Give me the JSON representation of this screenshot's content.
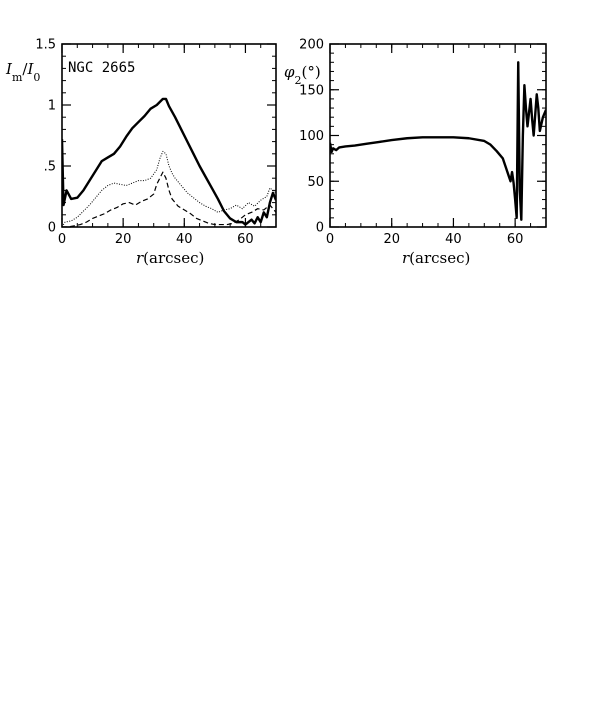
{
  "chart_data": [
    {
      "type": "line",
      "ylabel_main": "I",
      "ylabel_sub_m": "m",
      "ylabel_slash": "/",
      "ylabel_sub_0": "0",
      "xlabel_italic": "r",
      "xlabel_rest": "(arcsec)",
      "annotation": "NGC 2665",
      "xlim": [
        0,
        70
      ],
      "ylim": [
        0,
        1.5
      ],
      "xticks": [
        {
          "v": 0,
          "label": "0"
        },
        {
          "v": 20,
          "label": "20"
        },
        {
          "v": 40,
          "label": "40"
        },
        {
          "v": 60,
          "label": "60"
        }
      ],
      "yticks": [
        {
          "v": 0,
          "label": "0"
        },
        {
          "v": 0.5,
          "label": ".5"
        },
        {
          "v": 1,
          "label": "1"
        },
        {
          "v": 1.5,
          "label": "1.5"
        }
      ],
      "grid": false,
      "series": [
        {
          "style": "solid-thick",
          "x": [
            0,
            0.5,
            1.5,
            3,
            5,
            7,
            9,
            11,
            13,
            15,
            17,
            19,
            21,
            23,
            25,
            27,
            29,
            31,
            33,
            34,
            35,
            37,
            39,
            41,
            43,
            45,
            47,
            49,
            51,
            53,
            55,
            57,
            59,
            60,
            61,
            62,
            63,
            64,
            65,
            66,
            67,
            68,
            69,
            70
          ],
          "y": [
            0.72,
            0.18,
            0.3,
            0.23,
            0.24,
            0.3,
            0.38,
            0.46,
            0.54,
            0.57,
            0.6,
            0.66,
            0.74,
            0.81,
            0.86,
            0.91,
            0.97,
            1.0,
            1.05,
            1.05,
            0.99,
            0.9,
            0.8,
            0.7,
            0.6,
            0.5,
            0.41,
            0.32,
            0.23,
            0.13,
            0.07,
            0.04,
            0.04,
            0.02,
            0.04,
            0.06,
            0.03,
            0.08,
            0.04,
            0.12,
            0.08,
            0.2,
            0.28,
            0.22
          ]
        },
        {
          "style": "dotted",
          "x": [
            0,
            1,
            3,
            5,
            7,
            9,
            11,
            13,
            15,
            17,
            19,
            21,
            23,
            25,
            27,
            29,
            31,
            32,
            33,
            34,
            35,
            36,
            37,
            39,
            41,
            43,
            45,
            47,
            49,
            51,
            53,
            55,
            57,
            59,
            61,
            63,
            65,
            67,
            68,
            69,
            70
          ],
          "y": [
            0.0,
            0.04,
            0.05,
            0.08,
            0.13,
            0.18,
            0.24,
            0.3,
            0.34,
            0.36,
            0.35,
            0.34,
            0.36,
            0.38,
            0.38,
            0.4,
            0.47,
            0.56,
            0.62,
            0.6,
            0.5,
            0.44,
            0.4,
            0.34,
            0.28,
            0.24,
            0.2,
            0.17,
            0.15,
            0.12,
            0.14,
            0.15,
            0.18,
            0.15,
            0.2,
            0.17,
            0.22,
            0.25,
            0.32,
            0.3,
            0.28
          ]
        },
        {
          "style": "dashed",
          "x": [
            0,
            2,
            4,
            6,
            8,
            10,
            12,
            14,
            16,
            18,
            20,
            22,
            24,
            26,
            28,
            30,
            31,
            32,
            33,
            34,
            35,
            36,
            37,
            38,
            40,
            42,
            44,
            46,
            48,
            50,
            52,
            54,
            56,
            58,
            60,
            62,
            64,
            66,
            68,
            70
          ],
          "y": [
            0.0,
            0.0,
            0.01,
            0.02,
            0.04,
            0.07,
            0.09,
            0.11,
            0.14,
            0.16,
            0.19,
            0.2,
            0.18,
            0.21,
            0.23,
            0.27,
            0.35,
            0.4,
            0.45,
            0.4,
            0.3,
            0.23,
            0.2,
            0.17,
            0.14,
            0.11,
            0.07,
            0.05,
            0.03,
            0.02,
            0.02,
            0.02,
            0.03,
            0.06,
            0.1,
            0.12,
            0.15,
            0.14,
            0.18,
            0.12
          ]
        }
      ]
    },
    {
      "type": "line",
      "ylabel_main": "φ",
      "ylabel_sub": "2",
      "ylabel_unit": "(°)",
      "xlabel_italic": "r",
      "xlabel_rest": "(arcsec)",
      "xlim": [
        0,
        70
      ],
      "ylim": [
        0,
        200
      ],
      "xticks": [
        {
          "v": 0,
          "label": "0"
        },
        {
          "v": 20,
          "label": "20"
        },
        {
          "v": 40,
          "label": "40"
        },
        {
          "v": 60,
          "label": "60"
        }
      ],
      "yticks": [
        {
          "v": 0,
          "label": "0"
        },
        {
          "v": 50,
          "label": "50"
        },
        {
          "v": 100,
          "label": "100"
        },
        {
          "v": 150,
          "label": "150"
        },
        {
          "v": 200,
          "label": "200"
        }
      ],
      "grid": false,
      "series": [
        {
          "style": "solid-thick",
          "x": [
            0,
            0.5,
            1,
            2,
            3,
            5,
            8,
            12,
            16,
            20,
            25,
            30,
            35,
            40,
            45,
            50,
            52,
            54,
            56,
            57,
            58,
            58.5,
            59,
            59.5,
            60,
            60.5,
            61,
            61.5,
            62,
            62.5,
            63,
            63.5,
            64,
            64.5,
            65,
            65.5,
            66,
            67,
            67.5,
            68,
            69,
            70
          ],
          "y": [
            92,
            82,
            86,
            84,
            87,
            88,
            89,
            91,
            93,
            95,
            97,
            98,
            98,
            98,
            97,
            94,
            90,
            83,
            75,
            65,
            55,
            50,
            60,
            48,
            30,
            10,
            180,
            40,
            8,
            100,
            155,
            130,
            110,
            125,
            140,
            118,
            100,
            145,
            130,
            105,
            120,
            128
          ]
        }
      ]
    }
  ]
}
